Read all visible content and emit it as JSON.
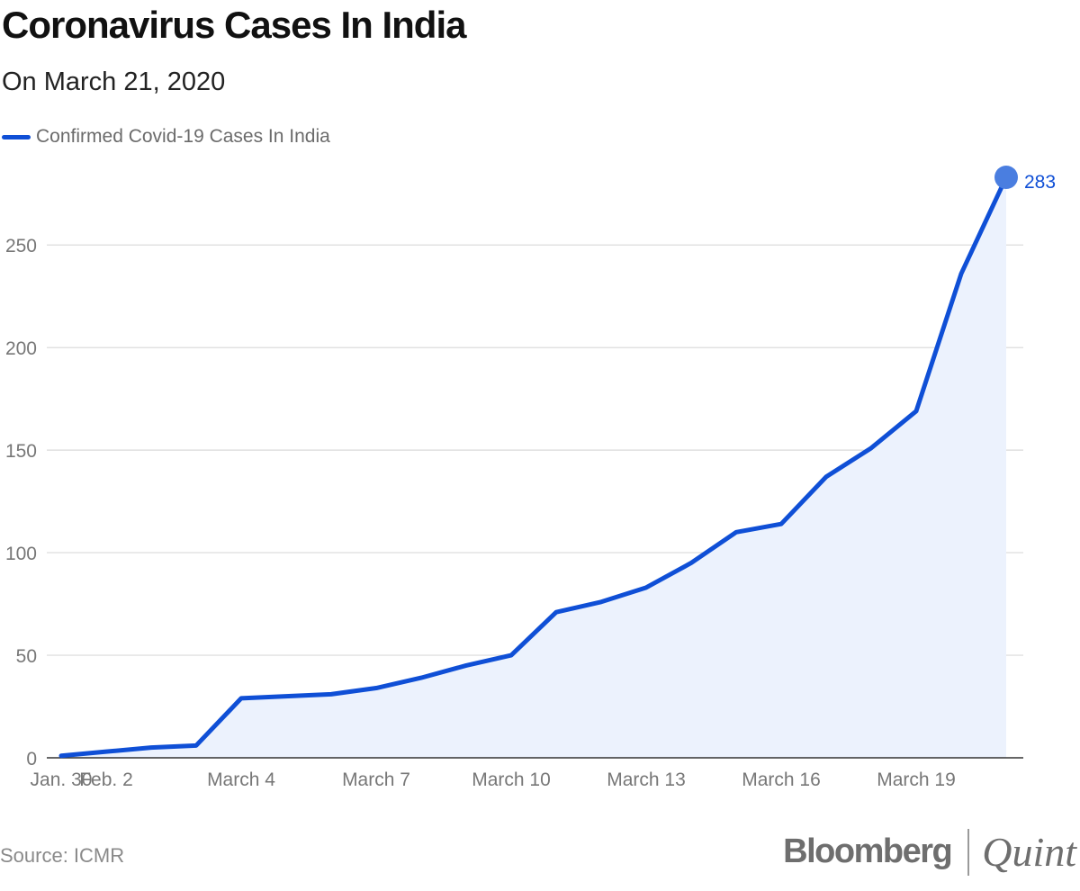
{
  "header": {
    "title": "Coronavirus Cases In India",
    "subtitle": "On March 21, 2020"
  },
  "legend": {
    "label": "Confirmed Covid-19 Cases In India",
    "color": "#0f4fd6"
  },
  "footer": {
    "source": "Source: ICMR",
    "logo_primary": "Bloomberg",
    "logo_secondary": "Quint"
  },
  "colors": {
    "line": "#0f4fd6",
    "area": "#ecf2fd",
    "grid": "#d9d9d9",
    "axis": "#333333",
    "tick_text": "#777777",
    "end_marker": "#4a7ee0"
  },
  "chart_data": {
    "type": "area",
    "title": "Coronavirus Cases In India",
    "subtitle": "On March 21, 2020",
    "xlabel": "",
    "ylabel": "",
    "ylim": [
      0,
      283
    ],
    "yticks": [
      0,
      50,
      100,
      150,
      200,
      250
    ],
    "grid": true,
    "legend_position": "top-left",
    "x_tick_labels": [
      "Jan. 30",
      "Feb. 2",
      "March 4",
      "March 7",
      "March 10",
      "March 13",
      "March 16",
      "March 19"
    ],
    "end_label": "283",
    "series": [
      {
        "name": "Confirmed Covid-19 Cases In India",
        "points": [
          {
            "x": "Jan. 30",
            "y": 1
          },
          {
            "x": "Feb. 2",
            "y": 3
          },
          {
            "x": "Feb. 3",
            "y": 5
          },
          {
            "x": "March 3",
            "y": 6
          },
          {
            "x": "March 4",
            "y": 29
          },
          {
            "x": "March 5",
            "y": 30
          },
          {
            "x": "March 6",
            "y": 31
          },
          {
            "x": "March 7",
            "y": 34
          },
          {
            "x": "March 8",
            "y": 39
          },
          {
            "x": "March 9",
            "y": 45
          },
          {
            "x": "March 10",
            "y": 50
          },
          {
            "x": "March 11",
            "y": 71
          },
          {
            "x": "March 12",
            "y": 76
          },
          {
            "x": "March 13",
            "y": 83
          },
          {
            "x": "March 14",
            "y": 95
          },
          {
            "x": "March 15",
            "y": 110
          },
          {
            "x": "March 16",
            "y": 114
          },
          {
            "x": "March 17",
            "y": 137
          },
          {
            "x": "March 18",
            "y": 151
          },
          {
            "x": "March 19",
            "y": 169
          },
          {
            "x": "March 20",
            "y": 236
          },
          {
            "x": "March 21",
            "y": 283
          }
        ]
      }
    ]
  }
}
